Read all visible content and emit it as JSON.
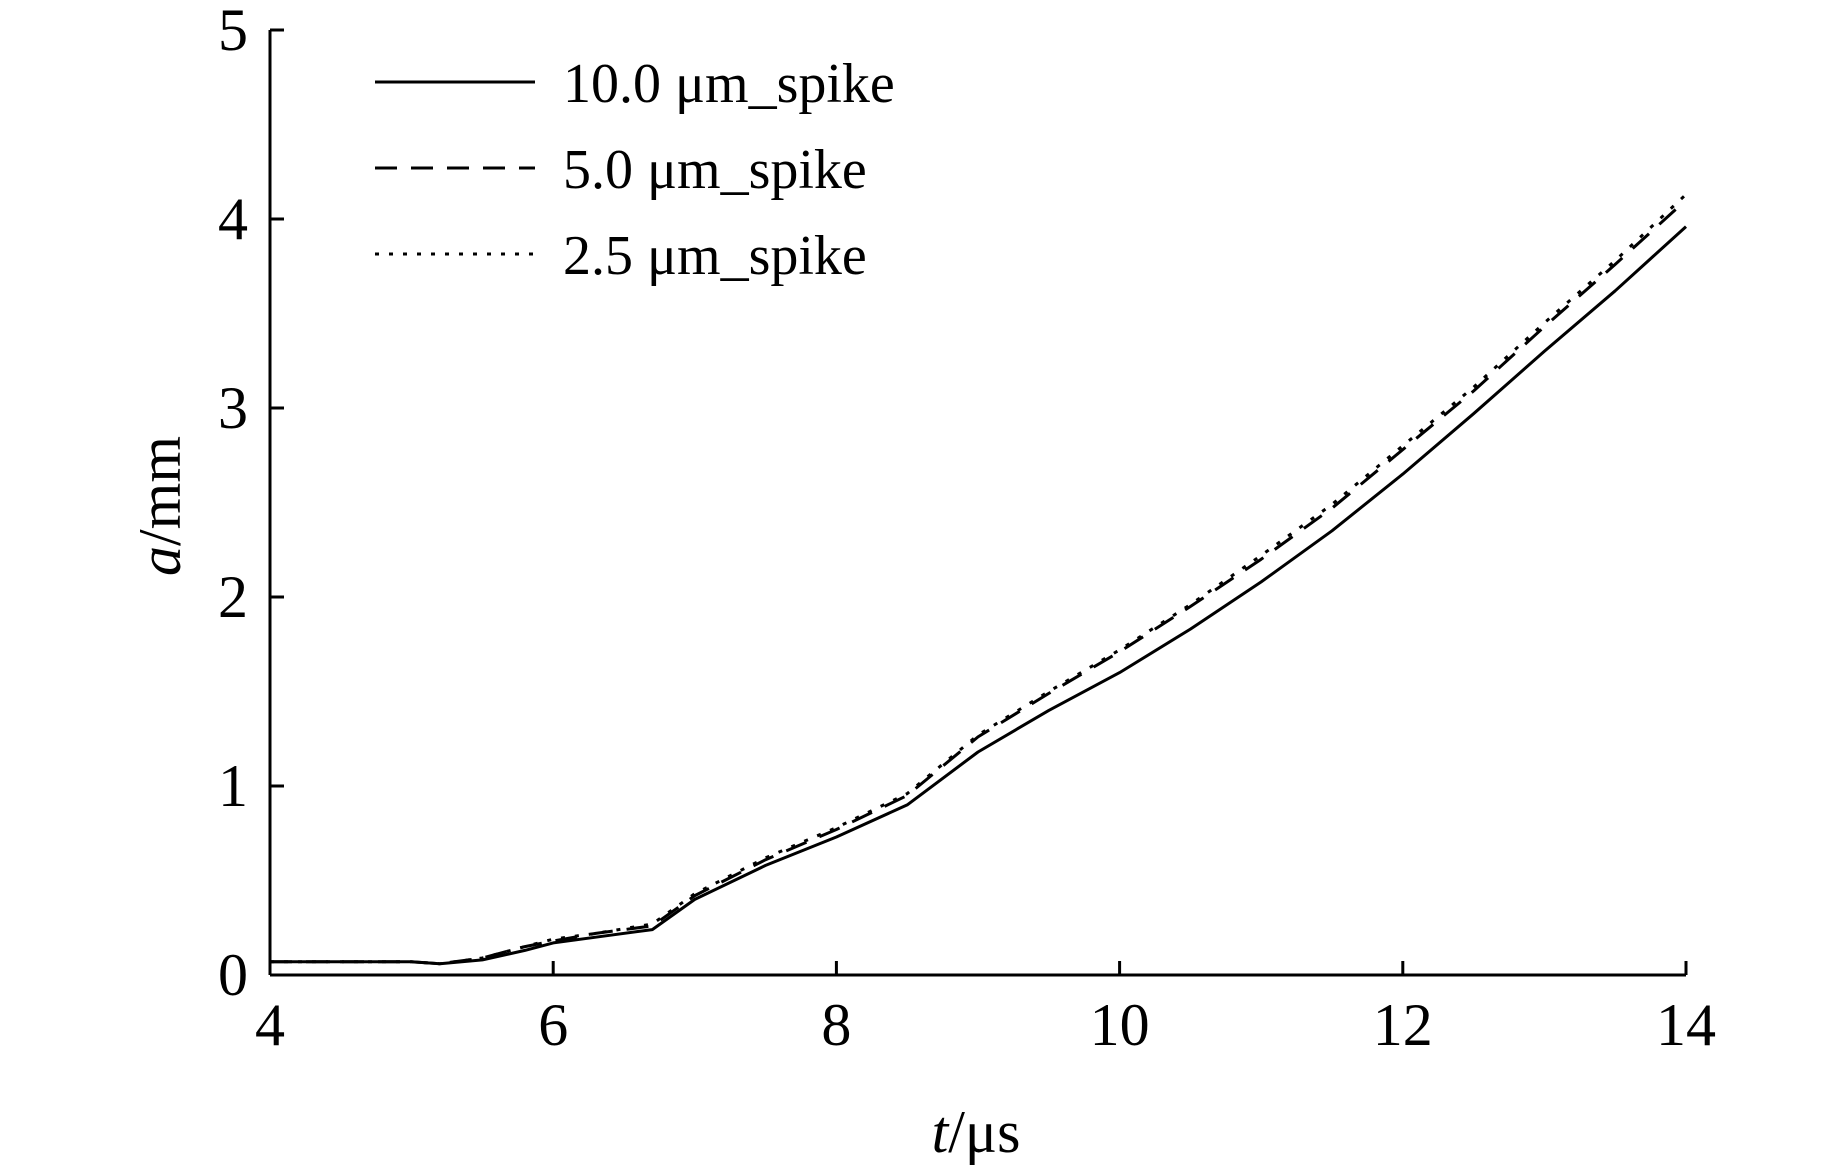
{
  "chart_data": {
    "type": "line",
    "xlabel": {
      "italic": "t",
      "rest": "/μs"
    },
    "ylabel": {
      "italic": "a",
      "rest": "/mm"
    },
    "xlim": [
      4,
      14
    ],
    "ylim": [
      0,
      5
    ],
    "xticks": [
      "4",
      "6",
      "8",
      "10",
      "12",
      "14"
    ],
    "yticks": [
      "0",
      "1",
      "2",
      "3",
      "4",
      "5"
    ],
    "grid": false,
    "legend_position": "top-left",
    "series": [
      {
        "name": "10.0 μm_spike",
        "style": "solid",
        "x": [
          4.0,
          5.0,
          5.2,
          5.5,
          5.8,
          6.0,
          6.3,
          6.7,
          7.0,
          7.5,
          8.0,
          8.5,
          9.0,
          9.5,
          10.0,
          10.5,
          11.0,
          11.5,
          12.0,
          12.5,
          13.0,
          13.5,
          14.0
        ],
        "y": [
          0.07,
          0.07,
          0.06,
          0.08,
          0.13,
          0.17,
          0.2,
          0.24,
          0.4,
          0.58,
          0.73,
          0.9,
          1.18,
          1.4,
          1.6,
          1.83,
          2.08,
          2.35,
          2.65,
          2.97,
          3.3,
          3.62,
          3.96
        ]
      },
      {
        "name": "5.0 μm_spike",
        "style": "dashed",
        "x": [
          4.0,
          5.0,
          5.2,
          5.5,
          5.8,
          6.0,
          6.3,
          6.7,
          7.0,
          7.5,
          8.0,
          8.5,
          9.0,
          9.5,
          10.0,
          10.5,
          11.0,
          11.5,
          12.0,
          12.5,
          13.0,
          13.5,
          14.0
        ],
        "y": [
          0.07,
          0.07,
          0.06,
          0.09,
          0.15,
          0.18,
          0.22,
          0.26,
          0.42,
          0.61,
          0.77,
          0.95,
          1.26,
          1.49,
          1.71,
          1.95,
          2.2,
          2.47,
          2.78,
          3.09,
          3.43,
          3.76,
          4.1
        ]
      },
      {
        "name": "2.5 μm_spike",
        "style": "dotted",
        "x": [
          4.0,
          5.0,
          5.2,
          5.5,
          5.8,
          6.0,
          6.3,
          6.7,
          7.0,
          7.5,
          8.0,
          8.5,
          9.0,
          9.5,
          10.0,
          10.5,
          11.0,
          11.5,
          12.0,
          12.5,
          13.0,
          13.5,
          14.0
        ],
        "y": [
          0.07,
          0.07,
          0.06,
          0.09,
          0.15,
          0.19,
          0.22,
          0.27,
          0.43,
          0.62,
          0.78,
          0.96,
          1.27,
          1.5,
          1.72,
          1.96,
          2.22,
          2.49,
          2.8,
          3.11,
          3.45,
          3.78,
          4.13
        ]
      }
    ]
  }
}
